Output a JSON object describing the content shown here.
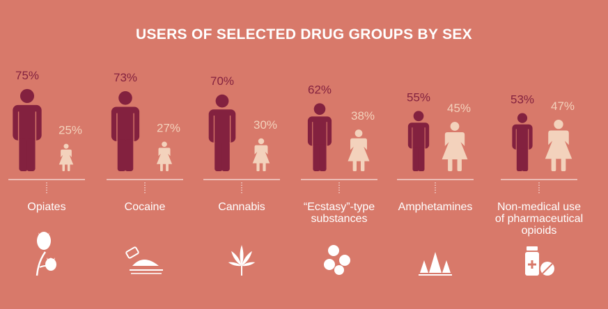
{
  "chart_data": {
    "type": "bar",
    "title": "USERS OF SELECTED DRUG GROUPS BY SEX",
    "categories": [
      "Opiates",
      "Cocaine",
      "Cannabis",
      "“Ecstasy”-type substances",
      "Amphetamines",
      "Non-medical use of pharmaceutical opioids"
    ],
    "category_lines": [
      [
        "Opiates"
      ],
      [
        "Cocaine"
      ],
      [
        "Cannabis"
      ],
      [
        "“Ecstasy”-type",
        "substances"
      ],
      [
        "Amphetamines"
      ],
      [
        "Non-medical use",
        "of pharmaceutical",
        "opioids"
      ]
    ],
    "series": [
      {
        "values": [
          75,
          73,
          70,
          62,
          55,
          53
        ],
        "value_labels": [
          "75%",
          "73%",
          "70%",
          "62%",
          "55%",
          "53%"
        ]
      },
      {
        "values": [
          25,
          27,
          30,
          38,
          45,
          47
        ],
        "value_labels": [
          "25%",
          "27%",
          "30%",
          "38%",
          "45%",
          "47%"
        ]
      }
    ],
    "icons": [
      "poppy-icon",
      "razor-powder-icon",
      "cannabis-leaf-icon",
      "pills-icon",
      "crystals-icon",
      "pill-bottle-icon"
    ],
    "colors": {
      "background": "#d8796a",
      "male": "#83213f",
      "female": "#f3d2bc",
      "text": "#ffffff"
    }
  }
}
